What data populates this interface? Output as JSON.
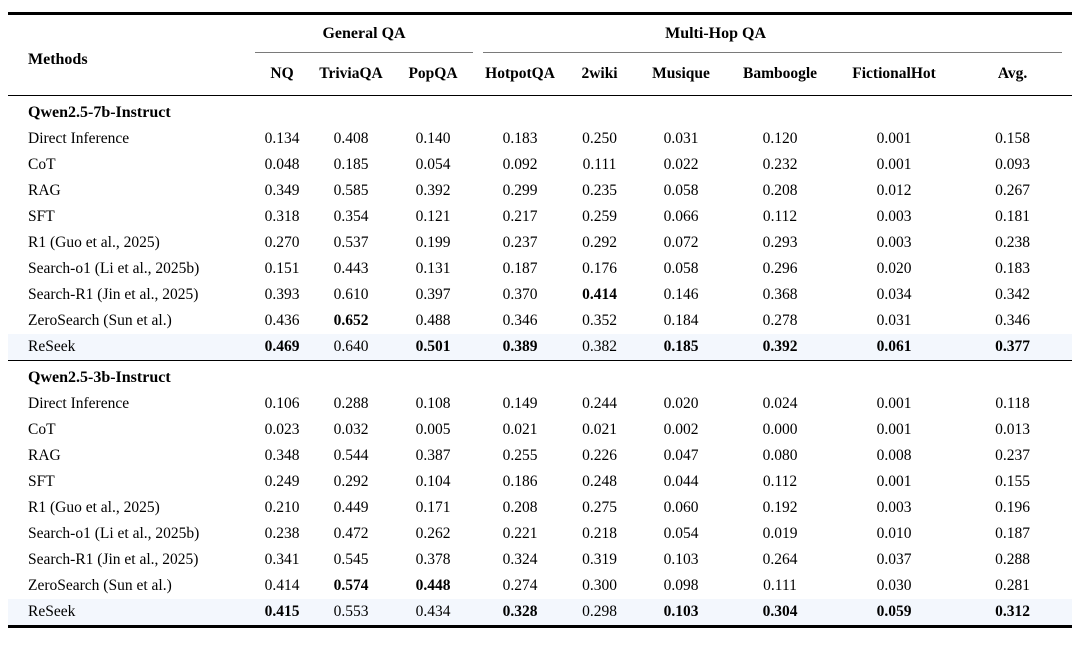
{
  "table": {
    "group_headers": [
      {
        "label": "General QA",
        "span": 3
      },
      {
        "label": "Multi-Hop QA",
        "span": 6
      }
    ],
    "columns": [
      "Methods",
      "NQ",
      "TriviaQA",
      "PopQA",
      "HotpotQA",
      "2wiki",
      "Musique",
      "Bamboogle",
      "FictionalHot",
      "Avg."
    ],
    "highlight_color": "#f3f7fd",
    "rule_color": "#000000",
    "cmidrule_color": "#7a7a7a",
    "sections": [
      {
        "title": "Qwen2.5-7b-Instruct",
        "rows": [
          {
            "method": "Direct Inference",
            "values": [
              "0.134",
              "0.408",
              "0.140",
              "0.183",
              "0.250",
              "0.031",
              "0.120",
              "0.001",
              "0.158"
            ],
            "bold": [
              0,
              0,
              0,
              0,
              0,
              0,
              0,
              0,
              0
            ],
            "highlight": false
          },
          {
            "method": "CoT",
            "values": [
              "0.048",
              "0.185",
              "0.054",
              "0.092",
              "0.111",
              "0.022",
              "0.232",
              "0.001",
              "0.093"
            ],
            "bold": [
              0,
              0,
              0,
              0,
              0,
              0,
              0,
              0,
              0
            ],
            "highlight": false
          },
          {
            "method": "RAG",
            "values": [
              "0.349",
              "0.585",
              "0.392",
              "0.299",
              "0.235",
              "0.058",
              "0.208",
              "0.012",
              "0.267"
            ],
            "bold": [
              0,
              0,
              0,
              0,
              0,
              0,
              0,
              0,
              0
            ],
            "highlight": false
          },
          {
            "method": "SFT",
            "values": [
              "0.318",
              "0.354",
              "0.121",
              "0.217",
              "0.259",
              "0.066",
              "0.112",
              "0.003",
              "0.181"
            ],
            "bold": [
              0,
              0,
              0,
              0,
              0,
              0,
              0,
              0,
              0
            ],
            "highlight": false
          },
          {
            "method": "R1 (Guo et al., 2025)",
            "values": [
              "0.270",
              "0.537",
              "0.199",
              "0.237",
              "0.292",
              "0.072",
              "0.293",
              "0.003",
              "0.238"
            ],
            "bold": [
              0,
              0,
              0,
              0,
              0,
              0,
              0,
              0,
              0
            ],
            "highlight": false
          },
          {
            "method": "Search-o1 (Li et al., 2025b)",
            "values": [
              "0.151",
              "0.443",
              "0.131",
              "0.187",
              "0.176",
              "0.058",
              "0.296",
              "0.020",
              "0.183"
            ],
            "bold": [
              0,
              0,
              0,
              0,
              0,
              0,
              0,
              0,
              0
            ],
            "highlight": false
          },
          {
            "method": "Search-R1 (Jin et al., 2025)",
            "values": [
              "0.393",
              "0.610",
              "0.397",
              "0.370",
              "0.414",
              "0.146",
              "0.368",
              "0.034",
              "0.342"
            ],
            "bold": [
              0,
              0,
              0,
              0,
              1,
              0,
              0,
              0,
              0
            ],
            "highlight": false
          },
          {
            "method": "ZeroSearch (Sun et al.)",
            "values": [
              "0.436",
              "0.652",
              "0.488",
              "0.346",
              "0.352",
              "0.184",
              "0.278",
              "0.031",
              "0.346"
            ],
            "bold": [
              0,
              1,
              0,
              0,
              0,
              0,
              0,
              0,
              0
            ],
            "highlight": false
          },
          {
            "method": "ReSeek",
            "values": [
              "0.469",
              "0.640",
              "0.501",
              "0.389",
              "0.382",
              "0.185",
              "0.392",
              "0.061",
              "0.377"
            ],
            "bold": [
              1,
              0,
              1,
              1,
              0,
              1,
              1,
              1,
              1
            ],
            "highlight": true
          }
        ]
      },
      {
        "title": "Qwen2.5-3b-Instruct",
        "rows": [
          {
            "method": "Direct Inference",
            "values": [
              "0.106",
              "0.288",
              "0.108",
              "0.149",
              "0.244",
              "0.020",
              "0.024",
              "0.001",
              "0.118"
            ],
            "bold": [
              0,
              0,
              0,
              0,
              0,
              0,
              0,
              0,
              0
            ],
            "highlight": false
          },
          {
            "method": "CoT",
            "values": [
              "0.023",
              "0.032",
              "0.005",
              "0.021",
              "0.021",
              "0.002",
              "0.000",
              "0.001",
              "0.013"
            ],
            "bold": [
              0,
              0,
              0,
              0,
              0,
              0,
              0,
              0,
              0
            ],
            "highlight": false
          },
          {
            "method": "RAG",
            "values": [
              "0.348",
              "0.544",
              "0.387",
              "0.255",
              "0.226",
              "0.047",
              "0.080",
              "0.008",
              "0.237"
            ],
            "bold": [
              0,
              0,
              0,
              0,
              0,
              0,
              0,
              0,
              0
            ],
            "highlight": false
          },
          {
            "method": "SFT",
            "values": [
              "0.249",
              "0.292",
              "0.104",
              "0.186",
              "0.248",
              "0.044",
              "0.112",
              "0.001",
              "0.155"
            ],
            "bold": [
              0,
              0,
              0,
              0,
              0,
              0,
              0,
              0,
              0
            ],
            "highlight": false
          },
          {
            "method": "R1 (Guo et al., 2025)",
            "values": [
              "0.210",
              "0.449",
              "0.171",
              "0.208",
              "0.275",
              "0.060",
              "0.192",
              "0.003",
              "0.196"
            ],
            "bold": [
              0,
              0,
              0,
              0,
              0,
              0,
              0,
              0,
              0
            ],
            "highlight": false
          },
          {
            "method": "Search-o1 (Li et al., 2025b)",
            "values": [
              "0.238",
              "0.472",
              "0.262",
              "0.221",
              "0.218",
              "0.054",
              "0.019",
              "0.010",
              "0.187"
            ],
            "bold": [
              0,
              0,
              0,
              0,
              0,
              0,
              0,
              0,
              0
            ],
            "highlight": false
          },
          {
            "method": "Search-R1 (Jin et al., 2025)",
            "values": [
              "0.341",
              "0.545",
              "0.378",
              "0.324",
              "0.319",
              "0.103",
              "0.264",
              "0.037",
              "0.288"
            ],
            "bold": [
              0,
              0,
              0,
              0,
              0,
              0,
              0,
              0,
              0
            ],
            "highlight": false
          },
          {
            "method": "ZeroSearch (Sun et al.)",
            "values": [
              "0.414",
              "0.574",
              "0.448",
              "0.274",
              "0.300",
              "0.098",
              "0.111",
              "0.030",
              "0.281"
            ],
            "bold": [
              0,
              1,
              1,
              0,
              0,
              0,
              0,
              0,
              0
            ],
            "highlight": false
          },
          {
            "method": "ReSeek",
            "values": [
              "0.415",
              "0.553",
              "0.434",
              "0.328",
              "0.298",
              "0.103",
              "0.304",
              "0.059",
              "0.312"
            ],
            "bold": [
              1,
              0,
              0,
              1,
              0,
              1,
              1,
              1,
              1
            ],
            "highlight": true
          }
        ]
      }
    ]
  }
}
